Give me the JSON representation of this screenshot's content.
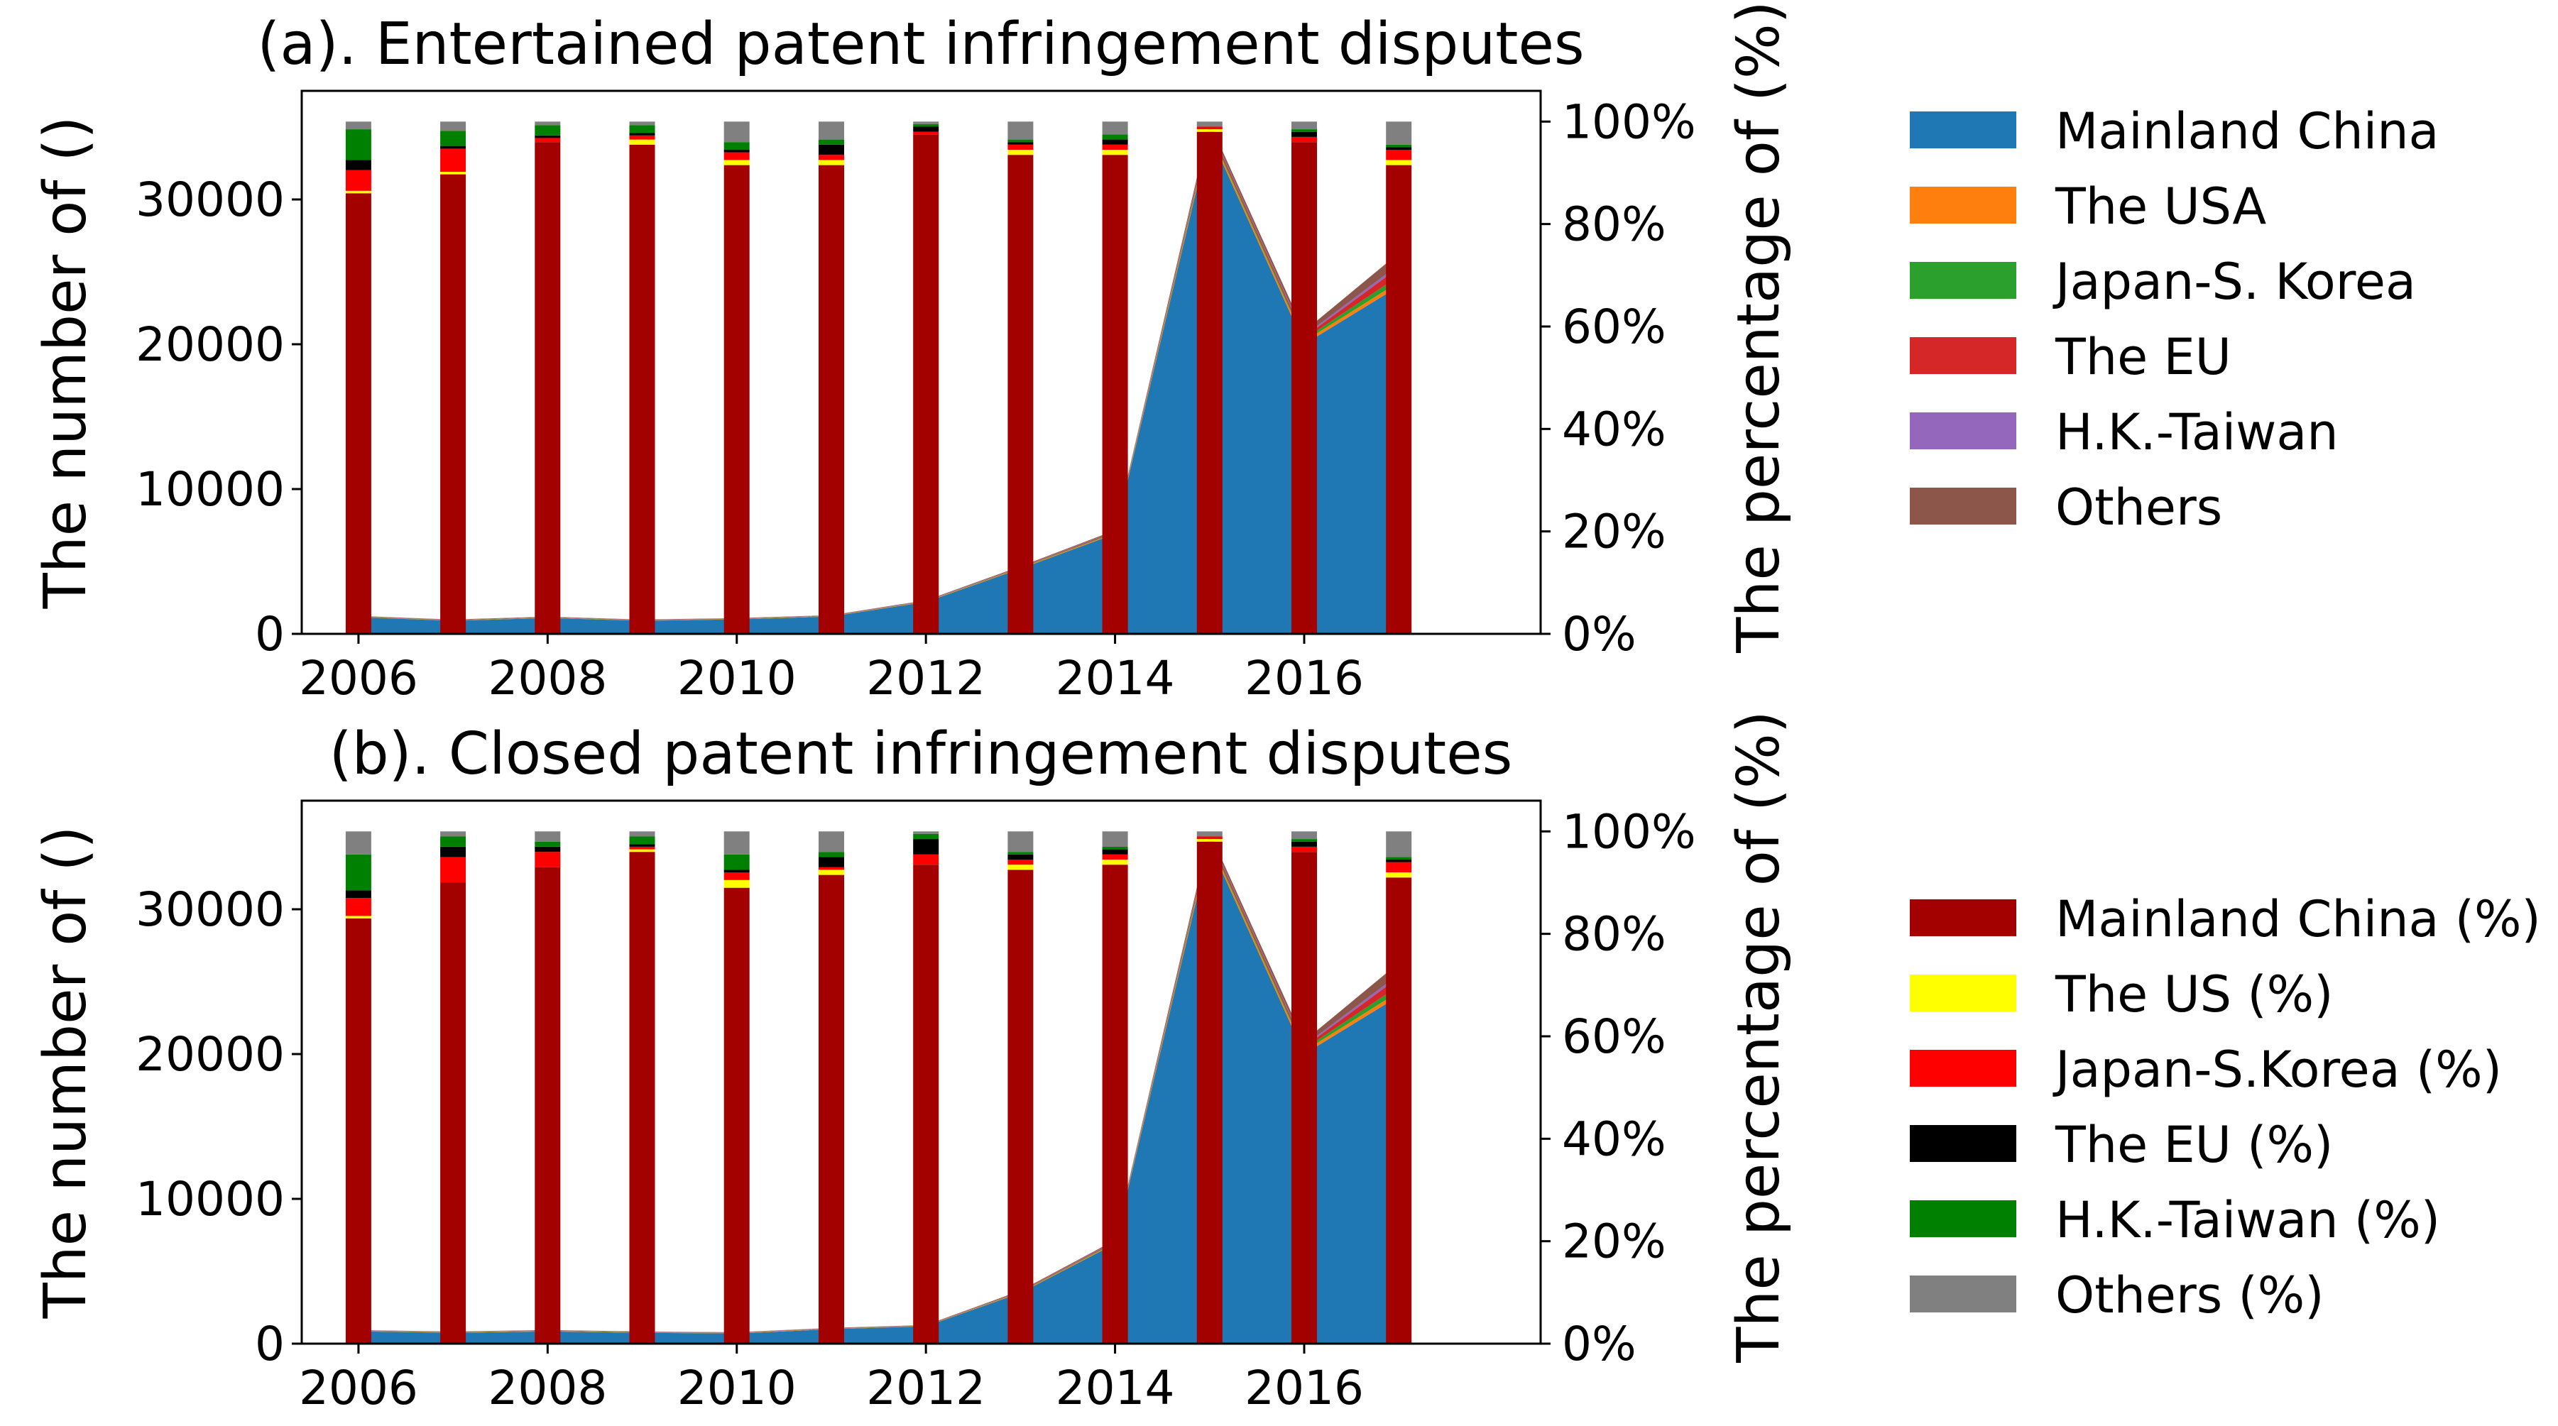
{
  "charts": [
    {
      "title": "(a). Entertained patent infringement disputes",
      "ylabel_left": "The number of ()",
      "ylabel_right": "The percentage of (%)"
    },
    {
      "title": "(b). Closed patent infringement disputes",
      "ylabel_left": "The number of ()",
      "ylabel_right": "The percentage of (%)"
    }
  ],
  "legend_area": {
    "labels": [
      "Mainland China",
      "The USA",
      "Japan-S. Korea",
      "The EU",
      "H.K.-Taiwan",
      "Others"
    ],
    "colors": [
      "#1f77b4",
      "#ff7f0e",
      "#2ca02c",
      "#d62728",
      "#9467bd",
      "#8c564b"
    ]
  },
  "legend_bar": {
    "labels": [
      "Mainland China (%)",
      "The US (%)",
      "Japan-S.Korea (%)",
      "The EU (%)",
      "H.K.-Taiwan (%)",
      "Others (%)"
    ],
    "colors": [
      "#a30000",
      "#ffff00",
      "#ff0000",
      "#000000",
      "#008000",
      "#808080"
    ]
  },
  "chart_data": [
    {
      "type": "area+stacked-bar",
      "title": "(a). Entertained patent infringement disputes",
      "xlabel": "",
      "ylabel": "The number of ()",
      "y2label": "The percentage of (%)",
      "x": [
        2006,
        2007,
        2008,
        2009,
        2010,
        2011,
        2012,
        2013,
        2014,
        2015,
        2016,
        2017
      ],
      "xticks": [
        "2006",
        "2008",
        "2010",
        "2012",
        "2014",
        "2016"
      ],
      "xlim": [
        2005.4,
        2018.5
      ],
      "ylim": [
        0,
        37500
      ],
      "yticks": [
        "0",
        "10000",
        "20000",
        "30000"
      ],
      "y2lim": [
        0,
        1.06
      ],
      "y2ticks": [
        "0%",
        "20%",
        "40%",
        "60%",
        "80%",
        "100%"
      ],
      "area_series": [
        {
          "name": "Mainland China",
          "values": [
            1150,
            900,
            1100,
            900,
            1000,
            1200,
            2200,
            4500,
            6900,
            34500,
            20000,
            24000
          ]
        },
        {
          "name": "The USA",
          "values": [
            20,
            20,
            20,
            20,
            20,
            20,
            30,
            40,
            60,
            200,
            200,
            300
          ]
        },
        {
          "name": "Japan-S. Korea",
          "values": [
            20,
            20,
            20,
            20,
            20,
            20,
            20,
            30,
            50,
            150,
            150,
            400
          ]
        },
        {
          "name": "The EU",
          "values": [
            20,
            20,
            20,
            20,
            20,
            20,
            20,
            30,
            50,
            150,
            150,
            600
          ]
        },
        {
          "name": "H.K.-Taiwan",
          "values": [
            10,
            10,
            10,
            10,
            10,
            10,
            20,
            20,
            30,
            100,
            100,
            200
          ]
        },
        {
          "name": "Others",
          "values": [
            20,
            20,
            20,
            20,
            20,
            20,
            30,
            40,
            60,
            200,
            300,
            800
          ]
        }
      ],
      "bar_series": [
        {
          "name": "Mainland China (%)",
          "values": [
            0.86,
            0.897,
            0.96,
            0.955,
            0.915,
            0.915,
            0.975,
            0.935,
            0.935,
            0.98,
            0.96,
            0.915
          ]
        },
        {
          "name": "The US (%)",
          "values": [
            0.005,
            0.005,
            0.0,
            0.01,
            0.01,
            0.01,
            0.0,
            0.01,
            0.01,
            0.005,
            0.0,
            0.01
          ]
        },
        {
          "name": "Japan-S.Korea (%)",
          "values": [
            0.04,
            0.045,
            0.008,
            0.008,
            0.015,
            0.01,
            0.005,
            0.01,
            0.01,
            0.005,
            0.01,
            0.02
          ]
        },
        {
          "name": "The EU (%)",
          "values": [
            0.02,
            0.005,
            0.005,
            0.005,
            0.005,
            0.02,
            0.01,
            0.005,
            0.01,
            0.0,
            0.01,
            0.005
          ]
        },
        {
          "name": "H.K.-Taiwan (%)",
          "values": [
            0.06,
            0.03,
            0.02,
            0.015,
            0.015,
            0.01,
            0.005,
            0.005,
            0.01,
            0.0,
            0.005,
            0.005
          ]
        },
        {
          "name": "Others (%)",
          "values": [
            0.015,
            0.018,
            0.007,
            0.007,
            0.04,
            0.035,
            0.005,
            0.035,
            0.025,
            0.01,
            0.015,
            0.045
          ]
        }
      ]
    },
    {
      "type": "area+stacked-bar",
      "title": "(b). Closed patent infringement disputes",
      "xlabel": "",
      "ylabel": "The number of ()",
      "y2label": "The percentage of (%)",
      "x": [
        2006,
        2007,
        2008,
        2009,
        2010,
        2011,
        2012,
        2013,
        2014,
        2015,
        2016,
        2017
      ],
      "xticks": [
        "2006",
        "2008",
        "2010",
        "2012",
        "2014",
        "2016"
      ],
      "xlim": [
        2005.4,
        2018.5
      ],
      "ylim": [
        0,
        37500
      ],
      "yticks": [
        "0",
        "10000",
        "20000",
        "30000"
      ],
      "y2lim": [
        0,
        1.06
      ],
      "y2ticks": [
        "0%",
        "20%",
        "40%",
        "60%",
        "80%",
        "100%"
      ],
      "area_series": [
        {
          "name": "Mainland China",
          "values": [
            850,
            750,
            850,
            750,
            700,
            1000,
            1200,
            3500,
            6900,
            34500,
            20000,
            24000
          ]
        },
        {
          "name": "The USA",
          "values": [
            20,
            20,
            20,
            20,
            20,
            20,
            20,
            40,
            60,
            200,
            200,
            300
          ]
        },
        {
          "name": "Japan-S. Korea",
          "values": [
            20,
            20,
            20,
            20,
            20,
            20,
            20,
            30,
            50,
            150,
            150,
            400
          ]
        },
        {
          "name": "The EU",
          "values": [
            20,
            20,
            20,
            20,
            20,
            20,
            20,
            30,
            50,
            150,
            150,
            600
          ]
        },
        {
          "name": "H.K.-Taiwan",
          "values": [
            10,
            10,
            10,
            10,
            10,
            10,
            10,
            20,
            30,
            100,
            100,
            200
          ]
        },
        {
          "name": "Others",
          "values": [
            20,
            20,
            20,
            20,
            20,
            20,
            20,
            40,
            60,
            200,
            300,
            800
          ]
        }
      ],
      "bar_series": [
        {
          "name": "Mainland China (%)",
          "values": [
            0.83,
            0.9,
            0.93,
            0.96,
            0.89,
            0.915,
            0.935,
            0.925,
            0.935,
            0.98,
            0.96,
            0.91
          ]
        },
        {
          "name": "The US (%)",
          "values": [
            0.005,
            0.0,
            0.0,
            0.005,
            0.015,
            0.01,
            0.0,
            0.01,
            0.01,
            0.005,
            0.0,
            0.01
          ]
        },
        {
          "name": "Japan-S.Korea (%)",
          "values": [
            0.035,
            0.05,
            0.03,
            0.005,
            0.015,
            0.005,
            0.02,
            0.01,
            0.01,
            0.005,
            0.01,
            0.02
          ]
        },
        {
          "name": "The EU (%)",
          "values": [
            0.015,
            0.02,
            0.01,
            0.005,
            0.005,
            0.02,
            0.03,
            0.01,
            0.01,
            0.0,
            0.01,
            0.005
          ]
        },
        {
          "name": "H.K.-Taiwan (%)",
          "values": [
            0.07,
            0.02,
            0.01,
            0.015,
            0.03,
            0.01,
            0.01,
            0.005,
            0.005,
            0.0,
            0.005,
            0.005
          ]
        },
        {
          "name": "Others (%)",
          "values": [
            0.045,
            0.01,
            0.02,
            0.01,
            0.045,
            0.04,
            0.005,
            0.04,
            0.03,
            0.01,
            0.015,
            0.05
          ]
        }
      ]
    }
  ]
}
